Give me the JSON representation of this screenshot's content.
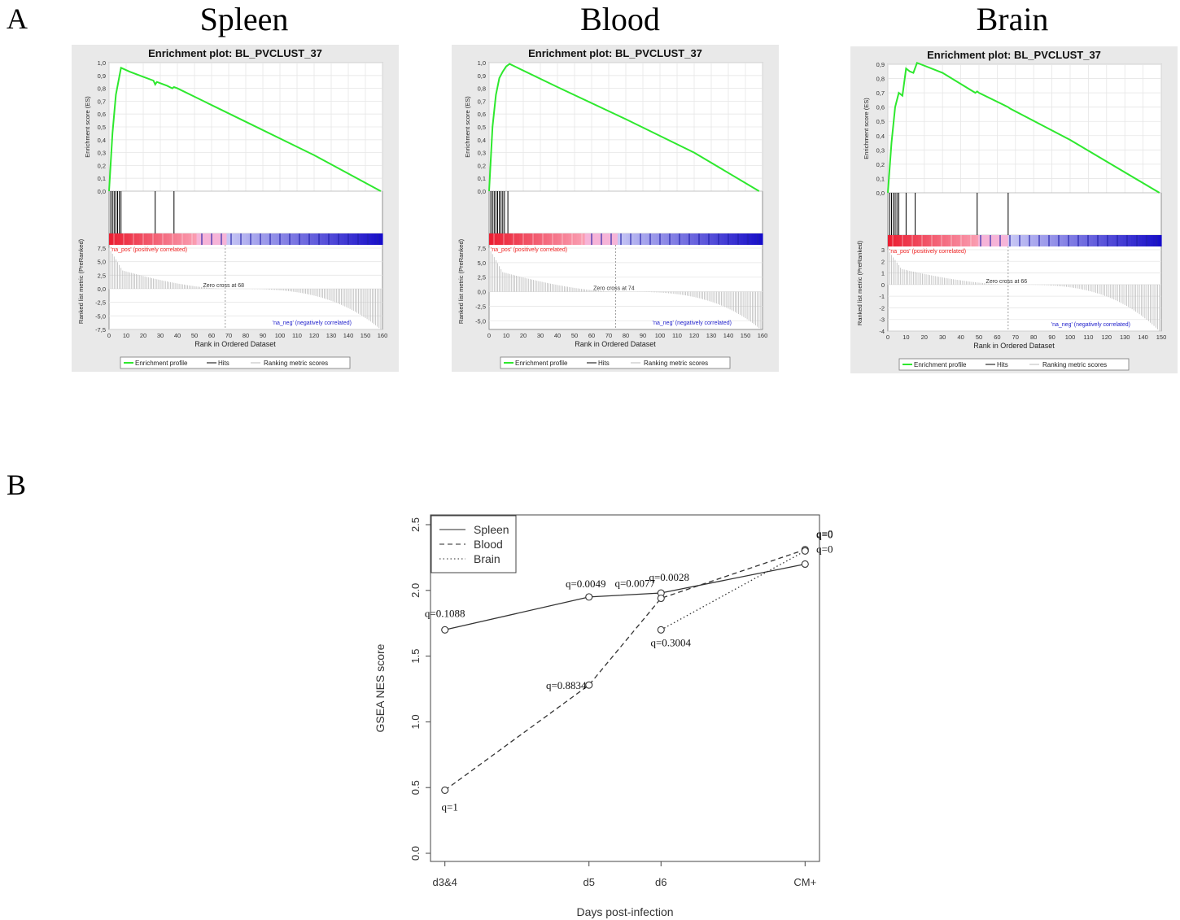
{
  "panel_a_label": "A",
  "panel_b_label": "B",
  "chart_data": [
    {
      "type": "line",
      "tissue": "Spleen",
      "title": "Enrichment plot: BL_PVCLUST_37",
      "ylabel": "Enrichment score (ES)",
      "ylabel2": "Ranked list metric (PreRanked)",
      "xlabel": "Rank in Ordered Dataset",
      "xlim": [
        0,
        160
      ],
      "ylim": [
        0,
        1.0
      ],
      "yticks": [
        "0,0",
        "0,1",
        "0,2",
        "0,3",
        "0,4",
        "0,5",
        "0,6",
        "0,7",
        "0,8",
        "0,9",
        "1,0"
      ],
      "xticks": [
        "0",
        "10",
        "20",
        "30",
        "40",
        "50",
        "60",
        "70",
        "80",
        "90",
        "100",
        "110",
        "120",
        "130",
        "140",
        "150",
        "160"
      ],
      "metric_ticks": [
        "7,5",
        "5,0",
        "2,5",
        "0,0",
        "-2,5",
        "-5,0",
        "-7,5"
      ],
      "metric_range": [
        -7.5,
        7.5
      ],
      "x": [
        0,
        2,
        4,
        7,
        12,
        20,
        26,
        27,
        28,
        30,
        34,
        37,
        38,
        40,
        80,
        120,
        159
      ],
      "y": [
        0.0,
        0.45,
        0.75,
        0.96,
        0.93,
        0.89,
        0.86,
        0.83,
        0.85,
        0.84,
        0.82,
        0.8,
        0.81,
        0.8,
        0.54,
        0.28,
        0.0
      ],
      "hits": [
        1,
        2,
        3,
        4,
        5,
        6,
        7,
        27,
        38
      ],
      "n": 160,
      "zero_cross_label": "Zero cross at 68",
      "zero_cross": 68,
      "pos_label": "'na_pos' (positively correlated)",
      "neg_label": "'na_neg' (negatively correlated)",
      "legend": [
        "Enrichment profile",
        "Hits",
        "Ranking metric scores"
      ]
    },
    {
      "type": "line",
      "tissue": "Blood",
      "title": "Enrichment plot: BL_PVCLUST_37",
      "ylabel": "Enrichment score (ES)",
      "ylabel2": "Ranked list metric (PreRanked)",
      "xlabel": "Rank in Ordered Dataset",
      "xlim": [
        0,
        160
      ],
      "ylim": [
        0,
        1.0
      ],
      "yticks": [
        "0,0",
        "0,1",
        "0,2",
        "0,3",
        "0,4",
        "0,5",
        "0,6",
        "0,7",
        "0,8",
        "0,9",
        "1,0"
      ],
      "xticks": [
        "0",
        "10",
        "20",
        "30",
        "40",
        "50",
        "60",
        "70",
        "80",
        "90",
        "100",
        "110",
        "120",
        "130",
        "140",
        "150",
        "160"
      ],
      "metric_ticks": [
        "7,5",
        "5,0",
        "2,5",
        "0,0",
        "-2,5",
        "-5,0"
      ],
      "metric_range": [
        -6.5,
        7.5
      ],
      "x": [
        0,
        2,
        4,
        6,
        8,
        10,
        12,
        40,
        80,
        120,
        158
      ],
      "y": [
        0.0,
        0.5,
        0.75,
        0.88,
        0.93,
        0.97,
        0.99,
        0.81,
        0.56,
        0.3,
        0.0
      ],
      "hits": [
        1,
        2,
        3,
        4,
        5,
        6,
        7,
        8,
        9,
        11
      ],
      "n": 160,
      "zero_cross_label": "Zero cross at 74",
      "zero_cross": 74,
      "pos_label": "'na_pos' (positively correlated)",
      "neg_label": "'na_neg' (negatively correlated)",
      "legend": [
        "Enrichment profile",
        "Hits",
        "Ranking metric scores"
      ]
    },
    {
      "type": "line",
      "tissue": "Brain",
      "title": "Enrichment plot: BL_PVCLUST_37",
      "ylabel": "Enrichment score (ES)",
      "ylabel2": "Ranked list metric (PreRanked)",
      "xlabel": "Rank in Ordered Dataset",
      "xlim": [
        0,
        150
      ],
      "ylim": [
        0,
        0.9
      ],
      "yticks": [
        "0,0",
        "0,1",
        "0,2",
        "0,3",
        "0,4",
        "0,5",
        "0,6",
        "0,7",
        "0,8",
        "0,9"
      ],
      "xticks": [
        "0",
        "10",
        "20",
        "30",
        "40",
        "50",
        "60",
        "70",
        "80",
        "90",
        "100",
        "110",
        "120",
        "130",
        "140",
        "150"
      ],
      "metric_ticks": [
        "3",
        "2",
        "1",
        "0",
        "-1",
        "-2",
        "-3",
        "-4"
      ],
      "metric_range": [
        -4,
        3
      ],
      "x": [
        0,
        2,
        4,
        6,
        8,
        10,
        12,
        14,
        16,
        30,
        48,
        49,
        50,
        66,
        67,
        100,
        149
      ],
      "y": [
        0.0,
        0.35,
        0.6,
        0.7,
        0.68,
        0.87,
        0.85,
        0.84,
        0.91,
        0.84,
        0.7,
        0.71,
        0.7,
        0.6,
        0.59,
        0.37,
        0.0
      ],
      "hits": [
        1,
        2,
        3,
        4,
        5,
        6,
        10,
        15,
        49,
        66
      ],
      "n": 150,
      "zero_cross_label": "Zero cross at 66",
      "zero_cross": 66,
      "pos_label": "'na_pos' (positively correlated)",
      "neg_label": "'na_neg' (negatively correlated)",
      "legend": [
        "Enrichment profile",
        "Hits",
        "Ranking metric scores"
      ]
    },
    {
      "type": "line",
      "xlabel": "Days post-infection",
      "ylabel": "GSEA NES score",
      "categories": [
        "d3&4",
        "d5",
        "d6",
        "CM+"
      ],
      "x_positions": [
        0,
        1,
        1.5,
        2.5
      ],
      "ylim": [
        0,
        2.5
      ],
      "yticks": [
        "0.0",
        "0.5",
        "1.0",
        "1.5",
        "2.0",
        "2.5"
      ],
      "series": [
        {
          "name": "Spleen",
          "style": "solid",
          "x": [
            0,
            1,
            1.5,
            2.5
          ],
          "values": [
            1.7,
            1.95,
            1.98,
            2.2
          ],
          "labels": [
            "q=0.1088",
            "q=0.0049",
            "q=0.0028",
            "q=0"
          ]
        },
        {
          "name": "Blood",
          "style": "dashed",
          "x": [
            0,
            1,
            1.5,
            2.5
          ],
          "values": [
            0.48,
            1.28,
            1.94,
            2.31
          ],
          "labels": [
            "q=1",
            "q=0.8834",
            "q=0.0077",
            "q=0"
          ]
        },
        {
          "name": "Brain",
          "style": "dotted",
          "x": [
            1.5,
            2.5
          ],
          "values": [
            1.7,
            2.3
          ],
          "labels": [
            "q=0.3004",
            "q=0"
          ]
        }
      ]
    }
  ]
}
